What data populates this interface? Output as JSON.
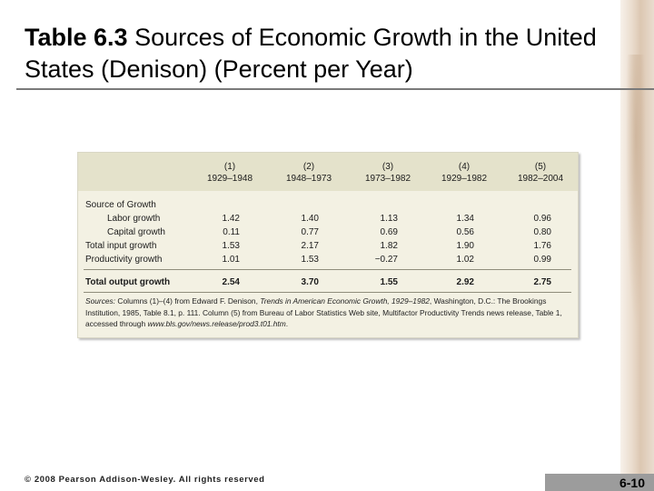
{
  "slide": {
    "title_num": "Table 6.3",
    "title_rest": " Sources of Economic Growth in the United States (Denison) (Percent per Year)",
    "footer": "© 2008 Pearson Addison-Wesley. All rights reserved",
    "page": "6-10"
  },
  "table": {
    "columns": [
      {
        "num": "(1)",
        "period": "1929–1948"
      },
      {
        "num": "(2)",
        "period": "1948–1973"
      },
      {
        "num": "(3)",
        "period": "1973–1982"
      },
      {
        "num": "(4)",
        "period": "1929–1982"
      },
      {
        "num": "(5)",
        "period": "1982–2004"
      }
    ],
    "section_label": "Source of Growth",
    "rows": [
      {
        "label": "Labor growth",
        "values": [
          "1.42",
          "1.40",
          "1.13",
          "1.34",
          "0.96"
        ]
      },
      {
        "label": "Capital growth",
        "values": [
          "0.11",
          "0.77",
          "0.69",
          "0.56",
          "0.80"
        ]
      },
      {
        "label": "Total input growth",
        "values": [
          "1.53",
          "2.17",
          "1.82",
          "1.90",
          "1.76"
        ]
      },
      {
        "label": "Productivity growth",
        "values": [
          "1.01",
          "1.53",
          "−0.27",
          "1.02",
          "0.99"
        ]
      }
    ],
    "total": {
      "label": "Total output growth",
      "values": [
        "2.54",
        "3.70",
        "1.55",
        "2.92",
        "2.75"
      ]
    },
    "sources_lead": "Sources:",
    "sources_1": " Columns (1)–(4) from Edward F. Denison, ",
    "sources_title": "Trends in American Economic Growth, 1929–1982",
    "sources_2": ", Washington, D.C.: The Brookings Institution, 1985, Table 8.1, p. 111. Column (5) from Bureau of Labor Statistics Web site, Multifactor Productivity Trends news release, Table 1, accessed through ",
    "sources_url": "www.bls.gov/news.release/prod3.t01.htm",
    "sources_end": "."
  }
}
